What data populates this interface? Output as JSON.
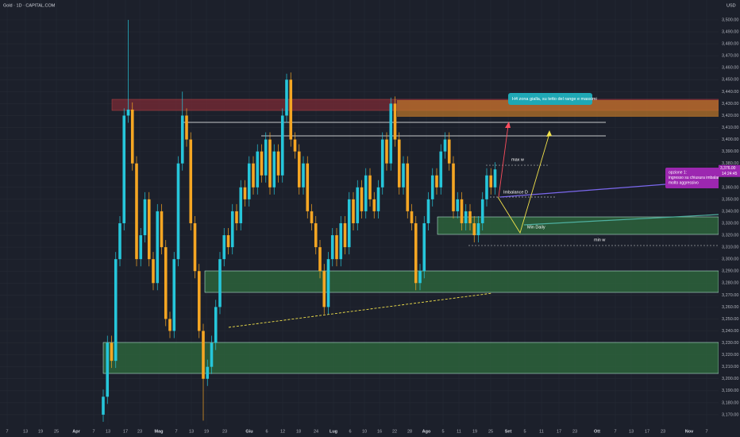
{
  "chart_data": {
    "type": "candlestick",
    "title": "Gold · 1D · CAPITAL.COM",
    "currency": "USD",
    "up_color": "#26c6da",
    "down_color": "#f5a623",
    "grid": true,
    "ylim": [
      3161.3,
      3516.6
    ],
    "yticks": [
      {
        "value": 3170,
        "label": "3,170.00"
      },
      {
        "value": 3180,
        "label": "3,180.00"
      },
      {
        "value": 3190,
        "label": "3,190.00"
      },
      {
        "value": 3200,
        "label": "3,200.00"
      },
      {
        "value": 3210,
        "label": "3,210.00"
      },
      {
        "value": 3220,
        "label": "3,220.00"
      },
      {
        "value": 3230,
        "label": "3,230.00"
      },
      {
        "value": 3240,
        "label": "3,240.00"
      },
      {
        "value": 3250,
        "label": "3,250.00"
      },
      {
        "value": 3260,
        "label": "3,260.00"
      },
      {
        "value": 3270,
        "label": "3,270.00"
      },
      {
        "value": 3280,
        "label": "3,280.00"
      },
      {
        "value": 3290,
        "label": "3,290.00"
      },
      {
        "value": 3300,
        "label": "3,300.00"
      },
      {
        "value": 3310,
        "label": "3,310.00"
      },
      {
        "value": 3320,
        "label": "3,320.00"
      },
      {
        "value": 3330,
        "label": "3,330.00"
      },
      {
        "value": 3340,
        "label": "3,340.00"
      },
      {
        "value": 3350,
        "label": "3,350.00"
      },
      {
        "value": 3360,
        "label": "3,360.00"
      },
      {
        "value": 3370,
        "label": "3,370.00"
      },
      {
        "value": 3380,
        "label": "3,380.00"
      },
      {
        "value": 3390,
        "label": "3,390.00"
      },
      {
        "value": 3400,
        "label": "3,400.00"
      },
      {
        "value": 3410,
        "label": "3,410.00"
      },
      {
        "value": 3420,
        "label": "3,420.00"
      },
      {
        "value": 3430,
        "label": "3,430.00"
      },
      {
        "value": 3440,
        "label": "3,440.00"
      },
      {
        "value": 3450,
        "label": "3,450.00"
      },
      {
        "value": 3460,
        "label": "3,460.00"
      },
      {
        "value": 3470,
        "label": "3,470.00"
      },
      {
        "value": 3480,
        "label": "3,480.00"
      },
      {
        "value": 3490,
        "label": "3,490.00"
      },
      {
        "value": 3500,
        "label": "3,500.00"
      }
    ],
    "xtick_labels": [
      "7",
      "13",
      "19",
      "25",
      "Apr",
      "7",
      "13",
      "17",
      "23",
      "Mag",
      "7",
      "13",
      "19",
      "23",
      "Giu",
      "6",
      "12",
      "18",
      "24",
      "Lug",
      "6",
      "10",
      "16",
      "22",
      "28",
      "Ago",
      "5",
      "11",
      "19",
      "25",
      "Set",
      "5",
      "11",
      "17",
      "23",
      "Ott",
      "7",
      "13",
      "17",
      "23",
      "Nov",
      "7"
    ],
    "open": [
      3170,
      3185,
      3230,
      3215,
      3300,
      3330,
      3420,
      3425,
      3380,
      3300,
      3320,
      3350,
      3300,
      3280,
      3340,
      3310,
      3250,
      3240,
      3300,
      3380,
      3420,
      3400,
      3330,
      3290,
      3240,
      3200,
      3210,
      3230,
      3260,
      3300,
      3320,
      3310,
      3340,
      3330,
      3360,
      3350,
      3380,
      3360,
      3390,
      3370,
      3400,
      3360,
      3390,
      3370,
      3420,
      3450,
      3400,
      3390,
      3360,
      3380,
      3340,
      3330,
      3310,
      3290,
      3260,
      3300,
      3320,
      3300,
      3330,
      3310,
      3350,
      3330,
      3360,
      3340,
      3370,
      3350,
      3340,
      3360,
      3400,
      3380,
      3430,
      3400,
      3360,
      3380,
      3340,
      3330,
      3280,
      3290,
      3330,
      3350,
      3370,
      3360,
      3390,
      3400,
      3380,
      3340,
      3350,
      3330,
      3340,
      3330,
      3320,
      3330,
      3350,
      3370,
      3360
    ],
    "high": [
      3191,
      3236,
      3236,
      3306,
      3336,
      3426,
      3500,
      3431,
      3386,
      3326,
      3356,
      3356,
      3306,
      3346,
      3346,
      3316,
      3256,
      3306,
      3386,
      3440,
      3426,
      3406,
      3336,
      3296,
      3246,
      3216,
      3236,
      3266,
      3306,
      3326,
      3326,
      3346,
      3346,
      3366,
      3366,
      3386,
      3386,
      3396,
      3396,
      3406,
      3406,
      3396,
      3396,
      3426,
      3455,
      3456,
      3406,
      3396,
      3386,
      3386,
      3346,
      3336,
      3316,
      3296,
      3306,
      3326,
      3326,
      3336,
      3336,
      3356,
      3356,
      3366,
      3366,
      3376,
      3376,
      3356,
      3366,
      3406,
      3406,
      3435,
      3436,
      3406,
      3386,
      3386,
      3346,
      3336,
      3296,
      3336,
      3356,
      3376,
      3376,
      3396,
      3406,
      3406,
      3386,
      3356,
      3356,
      3346,
      3346,
      3336,
      3336,
      3356,
      3376,
      3376,
      3381
    ],
    "low": [
      3164,
      3179,
      3209,
      3209,
      3294,
      3324,
      3414,
      3374,
      3294,
      3294,
      3314,
      3294,
      3274,
      3274,
      3304,
      3244,
      3234,
      3234,
      3294,
      3374,
      3394,
      3324,
      3284,
      3234,
      3165,
      3194,
      3204,
      3224,
      3254,
      3294,
      3304,
      3304,
      3324,
      3324,
      3344,
      3344,
      3354,
      3354,
      3364,
      3364,
      3354,
      3354,
      3364,
      3364,
      3414,
      3394,
      3384,
      3354,
      3354,
      3334,
      3324,
      3304,
      3284,
      3254,
      3254,
      3294,
      3294,
      3294,
      3304,
      3304,
      3324,
      3324,
      3334,
      3334,
      3344,
      3334,
      3334,
      3354,
      3374,
      3374,
      3394,
      3354,
      3354,
      3334,
      3324,
      3274,
      3274,
      3284,
      3324,
      3344,
      3354,
      3354,
      3384,
      3374,
      3334,
      3334,
      3324,
      3324,
      3324,
      3314,
      3314,
      3324,
      3344,
      3354,
      3354
    ],
    "close": [
      3185,
      3230,
      3215,
      3300,
      3330,
      3420,
      3425,
      3380,
      3300,
      3320,
      3350,
      3300,
      3280,
      3340,
      3310,
      3250,
      3240,
      3300,
      3380,
      3420,
      3400,
      3330,
      3290,
      3240,
      3200,
      3210,
      3230,
      3260,
      3300,
      3320,
      3310,
      3340,
      3330,
      3360,
      3350,
      3380,
      3360,
      3390,
      3370,
      3400,
      3360,
      3390,
      3370,
      3420,
      3450,
      3400,
      3390,
      3360,
      3380,
      3340,
      3330,
      3310,
      3290,
      3260,
      3300,
      3320,
      3300,
      3330,
      3310,
      3350,
      3330,
      3360,
      3340,
      3370,
      3350,
      3340,
      3360,
      3400,
      3380,
      3430,
      3400,
      3360,
      3380,
      3340,
      3330,
      3280,
      3290,
      3330,
      3350,
      3370,
      3360,
      3390,
      3400,
      3380,
      3340,
      3350,
      3330,
      3340,
      3330,
      3320,
      3330,
      3350,
      3370,
      3360,
      3375
    ],
    "current_price": {
      "value": 3376,
      "label": "3,376.00"
    },
    "countdown": "14:24:45",
    "annotations": {
      "zone_note": "H4 zona gialla, su tetto del range e massimi",
      "max_w": "max w",
      "imbalance": "Imbalance D",
      "min_daily": "Min Daily",
      "min_w": "min w",
      "option_lines": [
        "opzione 1:",
        "ingresso su chiusura imbalance",
        "molto aggressivo"
      ]
    }
  }
}
